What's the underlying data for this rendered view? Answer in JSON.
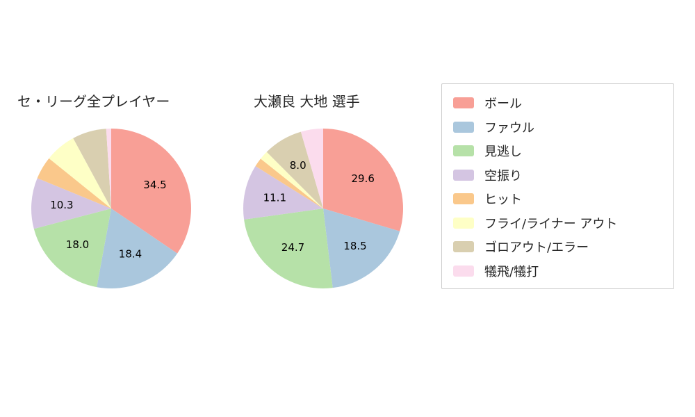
{
  "page": {
    "background_color": "#ffffff"
  },
  "chart_data": [
    {
      "type": "pie",
      "title": "セ・リーグ全プレイヤー",
      "categories": [
        "ボール",
        "ファウル",
        "見逃し",
        "空振り",
        "ヒット",
        "フライ/ライナー アウト",
        "ゴロアウト/エラー",
        "犠飛/犠打"
      ],
      "values": [
        34.5,
        18.4,
        18.0,
        10.3,
        4.6,
        6.3,
        6.9,
        1.0
      ],
      "visible_value_labels": [
        "34.5",
        "18.4",
        "18.0",
        "10.3",
        "",
        "",
        "",
        ""
      ],
      "start_angle": "top",
      "direction": "clockwise",
      "value_label_radius_ratio": 0.62,
      "legend_position": "right"
    },
    {
      "type": "pie",
      "title": "大瀬良 大地 選手",
      "categories": [
        "ボール",
        "ファウル",
        "見逃し",
        "空振り",
        "ヒット",
        "フライ/ライナー アウト",
        "ゴロアウト/エラー",
        "犠飛/犠打"
      ],
      "values": [
        29.6,
        18.5,
        24.7,
        11.1,
        1.8,
        1.8,
        8.0,
        4.5
      ],
      "visible_value_labels": [
        "29.6",
        "18.5",
        "24.7",
        "11.1",
        "",
        "",
        "8.0",
        ""
      ],
      "start_angle": "top",
      "direction": "clockwise",
      "value_label_radius_ratio": 0.62,
      "legend_position": "right"
    }
  ],
  "legend": {
    "items": [
      {
        "label": "ボール",
        "color": "#f89f96"
      },
      {
        "label": "ファウル",
        "color": "#aac7dd"
      },
      {
        "label": "見逃し",
        "color": "#b6e1a8"
      },
      {
        "label": "空振り",
        "color": "#d4c5e2"
      },
      {
        "label": "ヒット",
        "color": "#fac88b"
      },
      {
        "label": "フライ/ライナー アウト",
        "color": "#feffc6"
      },
      {
        "label": "ゴロアウト/エラー",
        "color": "#d9cfb0"
      },
      {
        "label": "犠飛/犠打",
        "color": "#fbdced"
      }
    ],
    "border_color": "#cccccc",
    "text_color": "#262626"
  }
}
